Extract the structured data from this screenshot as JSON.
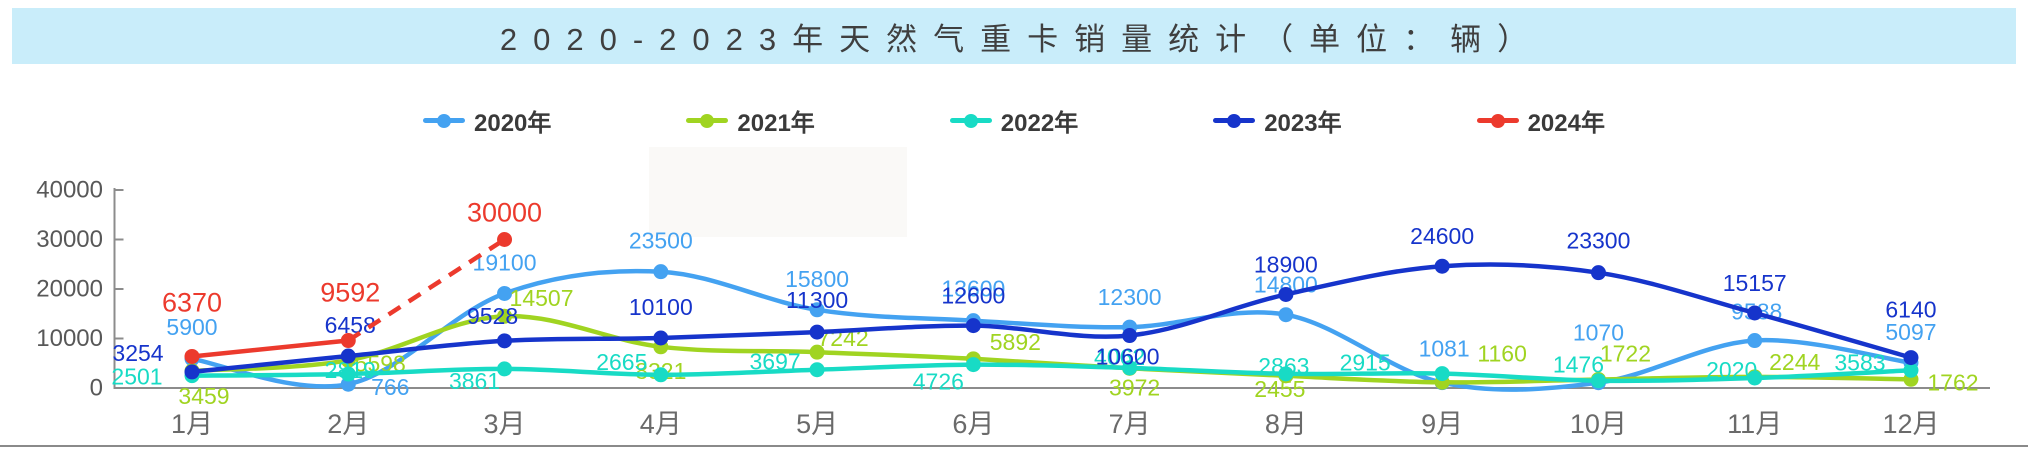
{
  "title": {
    "text": "2020-2023年天然气重卡销量统计（单位：辆）"
  },
  "chart_data": {
    "type": "line",
    "title": "2020-2023年天然气重卡销量统计（单位：辆）",
    "x_categories": [
      "1月",
      "2月",
      "3月",
      "4月",
      "5月",
      "6月",
      "7月",
      "8月",
      "9月",
      "10月",
      "11月",
      "12月"
    ],
    "ylim": [
      0,
      40000
    ],
    "yticks": [
      0,
      10000,
      20000,
      30000,
      40000
    ],
    "grid": false,
    "smooth": true,
    "legend_position": "top",
    "series": [
      {
        "name": "2020年",
        "color": "#44a2f1",
        "values": [
          5900,
          766,
          19100,
          23500,
          15800,
          13600,
          12300,
          14800,
          1081,
          1070,
          9588,
          5097
        ],
        "label_size": 23,
        "label_offsets": [
          [
            0,
            -32
          ],
          [
            42,
            3
          ],
          [
            0,
            -31
          ],
          [
            0,
            -31
          ],
          [
            0,
            -31
          ],
          [
            0,
            -32
          ],
          [
            0,
            -30
          ],
          [
            0,
            -30
          ],
          [
            2,
            -34
          ],
          [
            0,
            -50
          ],
          [
            2,
            -29
          ],
          [
            0,
            -31
          ]
        ]
      },
      {
        "name": "2021年",
        "color": "#a0d421",
        "values": [
          3459,
          5598,
          14507,
          8321,
          7242,
          5892,
          3972,
          2455,
          1160,
          1722,
          2244,
          1762
        ],
        "label_size": 23,
        "label_offsets": [
          [
            12,
            25
          ],
          [
            32,
            3
          ],
          [
            37,
            -18
          ],
          [
            0,
            24
          ],
          [
            26,
            -14
          ],
          [
            42,
            -17
          ],
          [
            5,
            19
          ],
          [
            -6,
            13
          ],
          [
            60,
            -29
          ],
          [
            27,
            -26
          ],
          [
            40,
            -15
          ],
          [
            42,
            3
          ]
        ]
      },
      {
        "name": "2022年",
        "color": "#18dbc5",
        "values": [
          2501,
          2819,
          3861,
          2665,
          3697,
          4726,
          4062,
          2863,
          2915,
          1476,
          2020,
          3583
        ],
        "label_size": 23,
        "label_offsets": [
          [
            -55,
            1
          ],
          [
            2,
            -4
          ],
          [
            -30,
            12
          ],
          [
            -39,
            -13
          ],
          [
            -42,
            -8
          ],
          [
            -35,
            17
          ],
          [
            -10,
            -11
          ],
          [
            -2,
            -8
          ],
          [
            -77,
            -11
          ],
          [
            -20,
            -16
          ],
          [
            -23,
            -8
          ],
          [
            -51,
            -8
          ]
        ]
      },
      {
        "name": "2023年",
        "color": "#1634cb",
        "values": [
          3254,
          6458,
          9528,
          10100,
          11300,
          12600,
          10600,
          18900,
          24600,
          23300,
          15157,
          6140
        ],
        "label_size": 23,
        "label_offsets": [
          [
            -54,
            -19
          ],
          [
            2,
            -31
          ],
          [
            -12,
            -25
          ],
          [
            0,
            -31
          ],
          [
            0,
            -32
          ],
          [
            0,
            -30
          ],
          [
            -2,
            21
          ],
          [
            0,
            -30
          ],
          [
            0,
            -30
          ],
          [
            0,
            -32
          ],
          [
            0,
            -30
          ],
          [
            0,
            -48
          ]
        ]
      },
      {
        "name": "2024年",
        "color": "#ec3a2d",
        "values": [
          6370,
          9592,
          30000
        ],
        "dashed_from_index": 1,
        "label_size": 27,
        "label_offsets": [
          [
            0,
            -54
          ],
          [
            2,
            -48
          ],
          [
            0,
            -27
          ]
        ]
      }
    ]
  }
}
